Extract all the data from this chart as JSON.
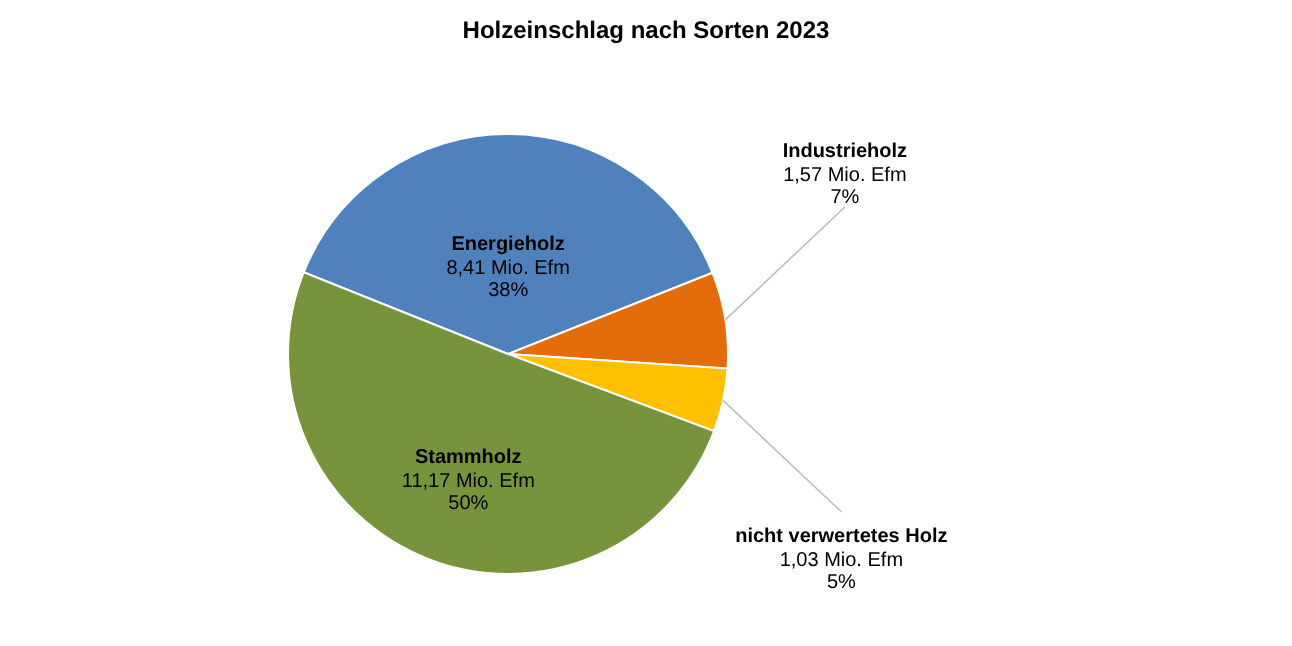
{
  "chart_data": {
    "type": "pie",
    "title": "Holzeinschlag nach Sorten 2023",
    "categories": [
      "Energieholz",
      "Industrieholz",
      "nicht verwertetes Holz",
      "Stammholz"
    ],
    "values": [
      8.41,
      1.57,
      1.03,
      11.17
    ],
    "colors": [
      "#4f81bd",
      "#e46c0a",
      "#ffc000",
      "#77933c"
    ],
    "value_labels": [
      "8,41 Mio. Efm\n38%",
      "1,57 Mio. Efm\n7%",
      "1,03 Mio. Efm\n5%",
      "11,17 Mio. Efm\n50%"
    ]
  }
}
